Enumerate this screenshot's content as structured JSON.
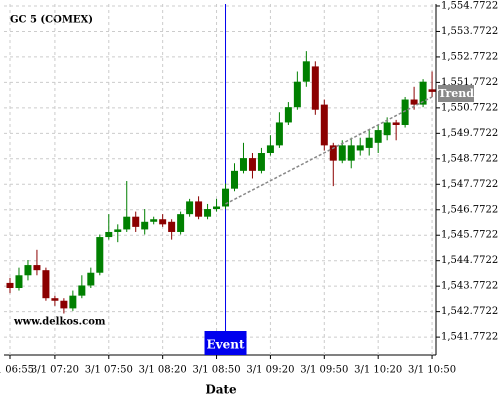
{
  "chart_data": {
    "type": "candlestick",
    "title": "GC 5 (COMEX)",
    "xlabel": "Date",
    "watermark": "www.delkos.com",
    "x": [
      "3/1 06:55",
      "3/1 07:00",
      "3/1 07:05",
      "3/1 07:10",
      "3/1 07:15",
      "3/1 07:20",
      "3/1 07:25",
      "3/1 07:30",
      "3/1 07:35",
      "3/1 07:40",
      "3/1 07:45",
      "3/1 07:50",
      "3/1 07:55",
      "3/1 08:00",
      "3/1 08:05",
      "3/1 08:10",
      "3/1 08:15",
      "3/1 08:20",
      "3/1 08:25",
      "3/1 08:30",
      "3/1 08:35",
      "3/1 08:40",
      "3/1 08:45",
      "3/1 08:50",
      "3/1 08:55",
      "3/1 09:00",
      "3/1 09:05",
      "3/1 09:10",
      "3/1 09:15",
      "3/1 09:20",
      "3/1 09:25",
      "3/1 09:30",
      "3/1 09:35",
      "3/1 09:40",
      "3/1 09:45",
      "3/1 09:50",
      "3/1 09:55",
      "3/1 10:00",
      "3/1 10:05",
      "3/1 10:10",
      "3/1 10:15",
      "3/1 10:20",
      "3/1 10:25",
      "3/1 10:30",
      "3/1 10:35",
      "3/1 10:40",
      "3/1 10:45",
      "3/1 10:50"
    ],
    "open": [
      1543.9,
      1543.7,
      1544.2,
      1544.6,
      1544.4,
      1543.3,
      1543.2,
      1542.9,
      1543.4,
      1543.8,
      1544.3,
      1545.7,
      1545.9,
      1546.0,
      1546.5,
      1546.0,
      1546.3,
      1546.4,
      1546.3,
      1545.9,
      1546.6,
      1547.1,
      1546.5,
      1546.8,
      1546.9,
      1547.6,
      1548.3,
      1548.8,
      1548.3,
      1549.0,
      1549.3,
      1550.2,
      1550.8,
      1551.8,
      1552.4,
      1550.9,
      1549.3,
      1548.7,
      1548.7,
      1549.1,
      1549.2,
      1549.4,
      1549.7,
      1550.2,
      1550.1,
      1551.1,
      1550.9,
      1551.5
    ],
    "high": [
      1544.1,
      1544.5,
      1544.8,
      1545.2,
      1544.5,
      1543.4,
      1543.3,
      1543.6,
      1544.2,
      1544.5,
      1545.8,
      1546.6,
      1546.2,
      1547.9,
      1546.7,
      1546.8,
      1546.5,
      1546.6,
      1546.4,
      1546.7,
      1547.2,
      1547.3,
      1547.0,
      1547.2,
      1547.8,
      1548.6,
      1549.4,
      1549.0,
      1549.2,
      1549.7,
      1550.6,
      1551.0,
      1552.2,
      1553.0,
      1552.6,
      1551.1,
      1549.4,
      1549.5,
      1549.6,
      1549.6,
      1549.9,
      1550.1,
      1550.4,
      1550.3,
      1551.2,
      1551.6,
      1551.9,
      1552.2
    ],
    "low": [
      1543.5,
      1543.6,
      1544.0,
      1544.2,
      1543.2,
      1543.0,
      1542.7,
      1542.8,
      1543.3,
      1543.7,
      1544.2,
      1545.6,
      1545.5,
      1545.9,
      1545.9,
      1545.8,
      1546.2,
      1546.1,
      1545.6,
      1545.8,
      1546.5,
      1546.4,
      1546.4,
      1546.7,
      1546.8,
      1547.5,
      1548.2,
      1548.0,
      1548.2,
      1548.9,
      1549.2,
      1550.1,
      1550.7,
      1551.6,
      1550.5,
      1549.1,
      1547.7,
      1548.6,
      1548.4,
      1548.9,
      1548.9,
      1549.0,
      1549.5,
      1549.5,
      1550.0,
      1550.7,
      1550.8,
      1551.2
    ],
    "close": [
      1543.7,
      1544.2,
      1544.6,
      1544.4,
      1543.3,
      1543.2,
      1542.9,
      1543.4,
      1543.8,
      1544.3,
      1545.7,
      1545.9,
      1546.0,
      1546.5,
      1546.1,
      1546.3,
      1546.4,
      1546.2,
      1545.9,
      1546.6,
      1547.1,
      1546.5,
      1546.8,
      1546.9,
      1547.6,
      1548.3,
      1548.8,
      1548.3,
      1549.0,
      1549.3,
      1550.2,
      1550.8,
      1551.8,
      1552.6,
      1550.7,
      1549.3,
      1548.7,
      1549.3,
      1549.3,
      1549.3,
      1549.6,
      1549.9,
      1550.2,
      1550.1,
      1551.1,
      1550.9,
      1551.8,
      1551.4
    ],
    "up_color": "#008000",
    "down_color": "#8b0000",
    "ylim": [
      1541.07,
      1554.85
    ],
    "yticks": [
      {
        "value": 1541.7722,
        "label": "1,541.7722"
      },
      {
        "value": 1542.7722,
        "label": "1,542.7722"
      },
      {
        "value": 1543.7722,
        "label": "1,543.7722"
      },
      {
        "value": 1544.7722,
        "label": "1,544.7722"
      },
      {
        "value": 1545.7722,
        "label": "1,545.7722"
      },
      {
        "value": 1546.7722,
        "label": "1,546.7722"
      },
      {
        "value": 1547.7722,
        "label": "1,547.7722"
      },
      {
        "value": 1548.7722,
        "label": "1,548.7722"
      },
      {
        "value": 1549.7722,
        "label": "1,549.7722"
      },
      {
        "value": 1550.7722,
        "label": "1,550.7722"
      },
      {
        "value": 1551.7722,
        "label": "1,551.7722"
      },
      {
        "value": 1552.7722,
        "label": "1,552.7722"
      },
      {
        "value": 1553.7722,
        "label": "1,553.7722"
      },
      {
        "value": 1554.7722,
        "label": "1,554.7722"
      }
    ],
    "xticks": [
      "3/1 06:55",
      "3/1 07:20",
      "3/1 07:50",
      "3/1 08:20",
      "3/1 08:50",
      "3/1 09:20",
      "3/1 09:50",
      "3/1 10:20",
      "3/1 10:50"
    ],
    "grid": true,
    "event": {
      "label": "Event",
      "x": "3/1 08:55",
      "color": "#0000ee"
    },
    "trend": {
      "label": "Trend",
      "x": [
        "3/1 08:55",
        "3/1 10:50"
      ],
      "y": [
        1547.0,
        1551.2
      ],
      "color": "#888888"
    }
  }
}
